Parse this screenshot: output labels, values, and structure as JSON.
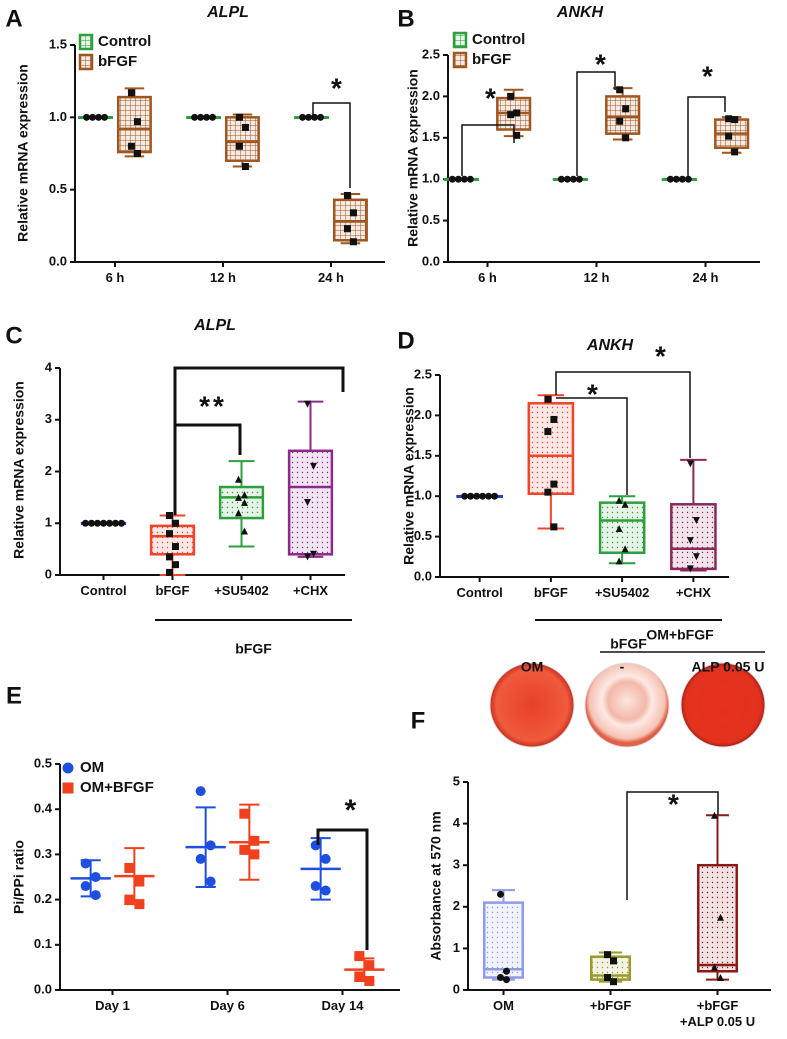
{
  "chart_data": [
    {
      "type": "box",
      "panel_label": "A",
      "title": "ALPL",
      "y_label": "Relative mRNA expression",
      "fill_pattern": "grid",
      "legend": "upper left",
      "categories": [
        "6 h",
        "12 h",
        "24 h"
      ],
      "series": [
        {
          "name": "Control",
          "color": "#2e9e3e",
          "marker": "circle",
          "boxes": [
            {
              "min": 1,
              "q1": 1,
              "median": 1,
              "q3": 1,
              "max": 1,
              "points": [
                1,
                1,
                1,
                1
              ]
            },
            {
              "min": 1,
              "q1": 1,
              "median": 1,
              "q3": 1,
              "max": 1,
              "points": [
                1,
                1,
                1,
                1
              ]
            },
            {
              "min": 1,
              "q1": 1,
              "median": 1,
              "q3": 1,
              "max": 1,
              "points": [
                1,
                1,
                1,
                1
              ]
            }
          ]
        },
        {
          "name": "bFGF",
          "color": "#a0561e",
          "marker": "square",
          "boxes": [
            {
              "min": 0.73,
              "q1": 0.76,
              "median": 0.92,
              "q3": 1.14,
              "max": 1.2,
              "points": [
                1.17,
                0.97,
                0.8,
                0.75
              ]
            },
            {
              "min": 0.66,
              "q1": 0.7,
              "median": 0.83,
              "q3": 1.0,
              "max": 1.02,
              "points": [
                1.0,
                0.93,
                0.8,
                0.66
              ]
            },
            {
              "min": 0.13,
              "q1": 0.15,
              "median": 0.28,
              "q3": 0.43,
              "max": 0.47,
              "points": [
                0.46,
                0.34,
                0.23,
                0.14
              ]
            }
          ]
        }
      ],
      "ylim": [
        0,
        1.5
      ],
      "yticks": [
        {
          "value": 0,
          "label": "0.0"
        },
        0.5,
        {
          "value": 1,
          "label": "1.0"
        },
        1.5
      ],
      "annotations": [
        "*"
      ]
    },
    {
      "type": "box",
      "panel_label": "B",
      "title": "ANKH",
      "y_label": "Relative mRNA expression",
      "fill_pattern": "grid",
      "legend": "upper left",
      "categories": [
        "6 h",
        "12 h",
        "24 h"
      ],
      "series": [
        {
          "name": "Control",
          "color": "#2e9e3e",
          "marker": "circle",
          "boxes": [
            {
              "min": 1,
              "q1": 1,
              "median": 1,
              "q3": 1,
              "max": 1,
              "points": [
                1,
                1,
                1,
                1
              ]
            },
            {
              "min": 1,
              "q1": 1,
              "median": 1,
              "q3": 1,
              "max": 1,
              "points": [
                1,
                1,
                1,
                1
              ]
            },
            {
              "min": 1,
              "q1": 1,
              "median": 1,
              "q3": 1,
              "max": 1,
              "points": [
                1,
                1,
                1,
                1
              ]
            }
          ]
        },
        {
          "name": "bFGF",
          "color": "#a0561e",
          "marker": "square",
          "boxes": [
            {
              "min": 1.52,
              "q1": 1.6,
              "median": 1.8,
              "q3": 1.98,
              "max": 2.08,
              "points": [
                2.0,
                1.8,
                1.78,
                1.53
              ]
            },
            {
              "min": 1.48,
              "q1": 1.55,
              "median": 1.75,
              "q3": 2.0,
              "max": 2.1,
              "points": [
                2.08,
                1.85,
                1.7,
                1.5
              ]
            },
            {
              "min": 1.32,
              "q1": 1.38,
              "median": 1.55,
              "q3": 1.72,
              "max": 1.75,
              "points": [
                1.73,
                1.72,
                1.52,
                1.33
              ]
            }
          ]
        }
      ],
      "ylim": [
        0,
        2.5
      ],
      "yticks": [
        {
          "value": 0,
          "label": "0.0"
        },
        0.5,
        {
          "value": 1,
          "label": "1.0"
        },
        1.5,
        {
          "value": 2,
          "label": "2.0"
        },
        2.5
      ],
      "annotations": [
        "*",
        "*",
        "*"
      ]
    },
    {
      "type": "box",
      "panel_label": "C",
      "title": "ALPL",
      "y_label": "Relative mRNA expression",
      "fill_pattern": "dots",
      "group_label": "bFGF",
      "categories": [
        "Control",
        "bFGF",
        "+SU5402",
        "+CHX"
      ],
      "colors": [
        "#2340c0",
        "#f0452a",
        "#2e9e3e",
        "#8b2a8b"
      ],
      "markers": [
        "circle",
        "square",
        "triangle",
        "triangle-down"
      ],
      "boxes": [
        {
          "min": 1,
          "q1": 1,
          "median": 1,
          "q3": 1,
          "max": 1,
          "points": [
            1,
            1,
            1,
            1,
            1,
            1,
            1
          ]
        },
        {
          "min": 0.0,
          "q1": 0.4,
          "median": 0.75,
          "q3": 0.95,
          "max": 1.15,
          "points": [
            1.15,
            1.0,
            0.8,
            0.55,
            0.35,
            0.2,
            0.05
          ]
        },
        {
          "min": 0.55,
          "q1": 1.1,
          "median": 1.5,
          "q3": 1.7,
          "max": 2.2,
          "points": [
            1.85,
            1.55,
            1.5,
            1.4,
            1.2,
            0.85
          ]
        },
        {
          "min": 0.35,
          "q1": 0.4,
          "median": 1.7,
          "q3": 2.4,
          "max": 3.35,
          "points": [
            3.3,
            2.1,
            1.4,
            0.4,
            0.35
          ]
        }
      ],
      "ylim": [
        0,
        4
      ],
      "yticks": [
        0,
        1,
        2,
        3,
        4
      ],
      "annotations": [
        "**"
      ]
    },
    {
      "type": "box",
      "panel_label": "D",
      "title": "ANKH",
      "y_label": "Relative mRNA expression",
      "fill_pattern": "dots",
      "group_label": "bFGF",
      "categories": [
        "Control",
        "bFGF",
        "+SU5402",
        "+CHX"
      ],
      "colors": [
        "#2340c0",
        "#f0452a",
        "#2e9e3e",
        "#8b2a5a"
      ],
      "markers": [
        "circle",
        "square",
        "triangle",
        "triangle-down"
      ],
      "boxes": [
        {
          "min": 1,
          "q1": 1,
          "median": 1,
          "q3": 1,
          "max": 1,
          "points": [
            1,
            1,
            1,
            1,
            1,
            1
          ]
        },
        {
          "min": 0.6,
          "q1": 1.03,
          "median": 1.5,
          "q3": 2.15,
          "max": 2.25,
          "points": [
            2.2,
            1.95,
            1.8,
            1.15,
            1.05,
            0.62
          ]
        },
        {
          "min": 0.17,
          "q1": 0.3,
          "median": 0.7,
          "q3": 0.92,
          "max": 1.0,
          "points": [
            0.95,
            0.9,
            0.6,
            0.35,
            0.2
          ]
        },
        {
          "min": 0.08,
          "q1": 0.1,
          "median": 0.35,
          "q3": 0.9,
          "max": 1.45,
          "points": [
            1.4,
            0.7,
            0.45,
            0.25,
            0.1
          ]
        }
      ],
      "ylim": [
        0,
        2.5
      ],
      "yticks": [
        {
          "value": 0,
          "label": "0.0"
        },
        0.5,
        {
          "value": 1,
          "label": "1.0"
        },
        1.5,
        {
          "value": 2,
          "label": "2.0"
        },
        2.5
      ],
      "annotations": [
        "*",
        "*"
      ]
    },
    {
      "type": "scatter",
      "panel_label": "E",
      "y_label": "Pi/PPi ratio",
      "legend": "upper left",
      "categories": [
        "Day 1",
        "Day 6",
        "Day 14"
      ],
      "series": [
        {
          "name": "OM",
          "color": "#1f4fe0",
          "marker": "circle",
          "values": [
            0.247,
            0.316,
            0.268
          ],
          "errors": [
            0.04,
            0.088,
            0.068
          ],
          "points": [
            [
              0.28,
              0.25,
              0.23,
              0.21
            ],
            [
              0.44,
              0.32,
              0.29,
              0.24
            ],
            [
              0.32,
              0.29,
              0.23,
              0.22
            ]
          ]
        },
        {
          "name": "OM+BFGF",
          "color": "#f0401e",
          "marker": "square",
          "values": [
            0.252,
            0.327,
            0.045
          ],
          "errors": [
            0.062,
            0.083,
            0.025
          ],
          "points": [
            [
              0.27,
              0.24,
              0.2,
              0.19
            ],
            [
              0.39,
              0.33,
              0.31,
              0.3
            ],
            [
              0.075,
              0.055,
              0.03,
              0.02
            ]
          ]
        }
      ],
      "ylim": [
        0,
        0.5
      ],
      "yticks": [
        {
          "value": 0,
          "label": "0.0"
        },
        0.1,
        0.2,
        0.3,
        0.4,
        0.5
      ],
      "annotations": [
        "*"
      ]
    },
    {
      "type": "box",
      "panel_label": "F",
      "y_label": "Absorbance at 570 nm",
      "fill_pattern": "dots",
      "image_group_label": "OM+bFGF",
      "image_labels": [
        "OM",
        "-",
        "ALP 0.05 U"
      ],
      "categories": [
        "OM",
        "+bFGF",
        "+bFGF\n+ALP 0.05 U"
      ],
      "colors": [
        "#8f9be8",
        "#9a9a2a",
        "#8b1a1a"
      ],
      "markers": [
        "circle",
        "square",
        "triangle"
      ],
      "boxes": [
        {
          "min": 0.25,
          "q1": 0.3,
          "median": 0.5,
          "q3": 2.1,
          "max": 2.4,
          "points": [
            2.3,
            0.45,
            0.3,
            0.25
          ]
        },
        {
          "min": 0.2,
          "q1": 0.25,
          "median": 0.35,
          "q3": 0.8,
          "max": 0.9,
          "points": [
            0.85,
            0.7,
            0.3,
            0.2
          ]
        },
        {
          "min": 0.25,
          "q1": 0.45,
          "median": 0.6,
          "q3": 3.0,
          "max": 4.2,
          "points": [
            4.2,
            1.75,
            0.55,
            0.3
          ]
        }
      ],
      "ylim": [
        0,
        5
      ],
      "yticks": [
        0,
        1,
        2,
        3,
        4,
        5
      ],
      "annotations": [
        "*"
      ]
    }
  ]
}
